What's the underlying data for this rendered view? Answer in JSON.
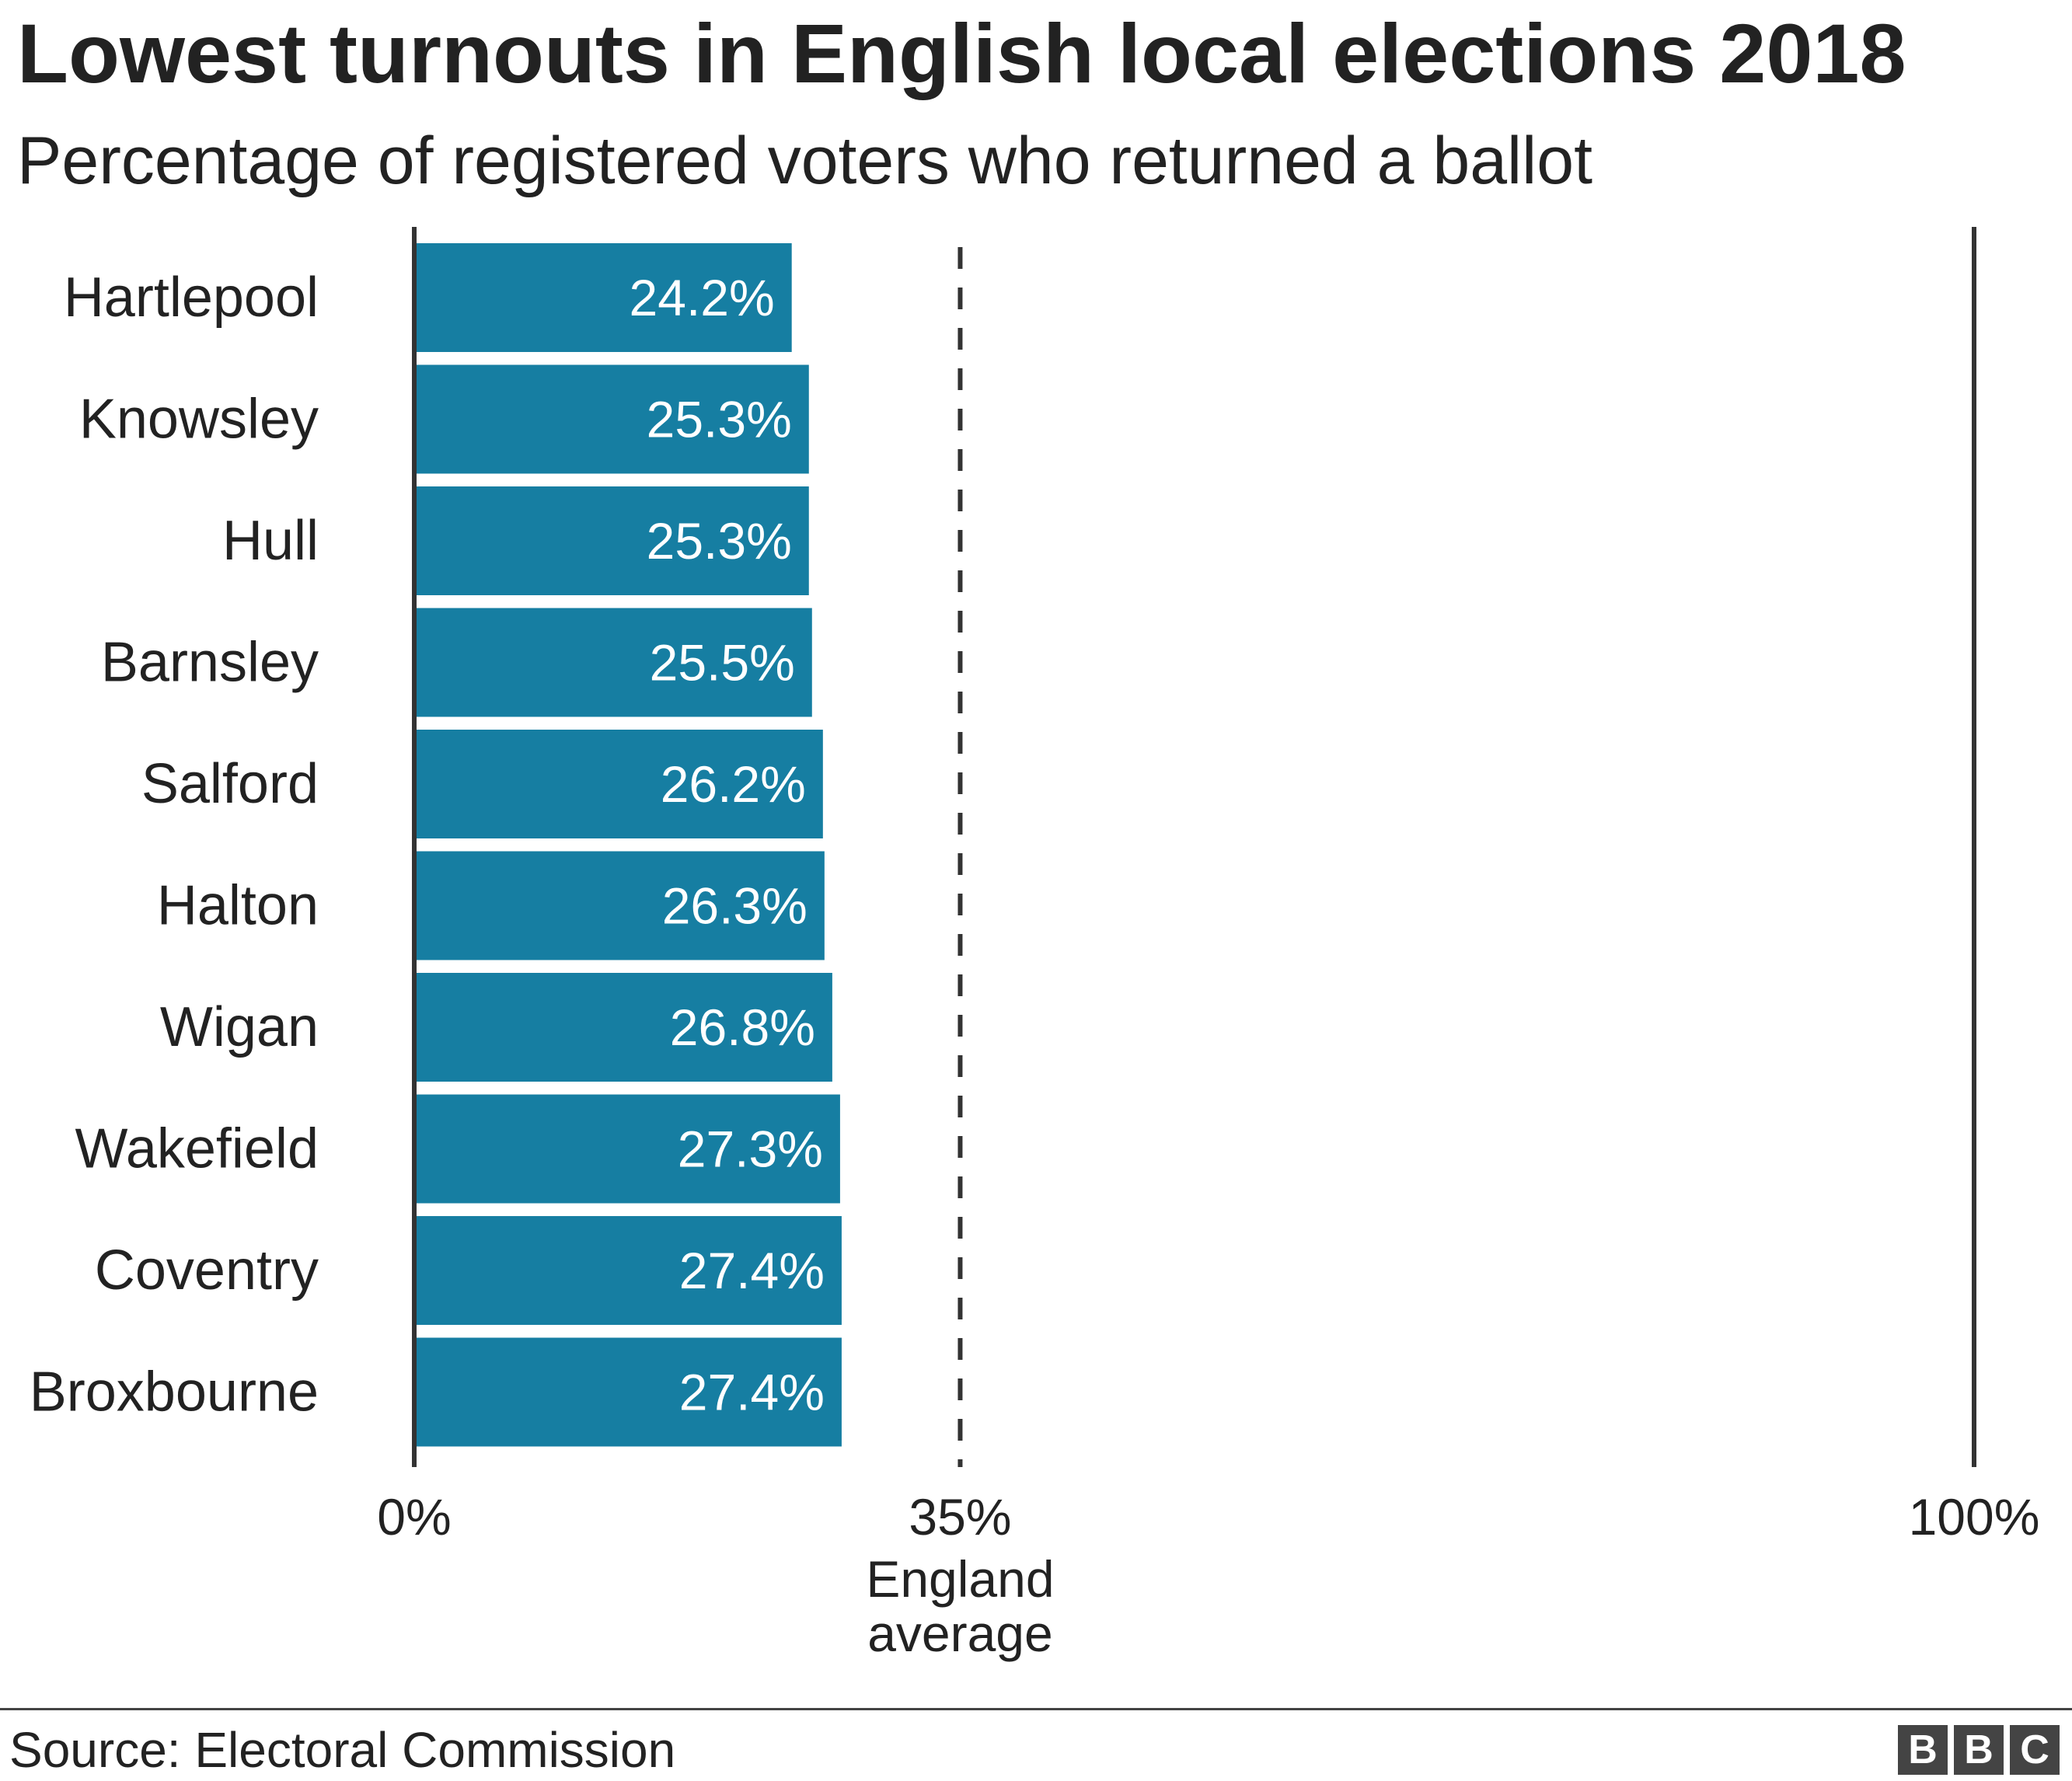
{
  "title": "Lowest turnouts in English local elections 2018",
  "subtitle": "Percentage of registered voters who returned a ballot",
  "source": "Source: Electoral Commission",
  "logo_letters": [
    "B",
    "B",
    "C"
  ],
  "colors": {
    "bar": "#167ea2",
    "axis": "#333333",
    "text": "#222222",
    "bar_label": "#ffffff"
  },
  "chart_data": {
    "type": "bar",
    "orientation": "horizontal",
    "title": "Lowest turnouts in English local elections 2018",
    "subtitle": "Percentage of registered voters who returned a ballot",
    "categories": [
      "Hartlepool",
      "Knowsley",
      "Hull",
      "Barnsley",
      "Salford",
      "Halton",
      "Wigan",
      "Wakefield",
      "Coventry",
      "Broxbourne"
    ],
    "values": [
      24.2,
      25.3,
      25.3,
      25.5,
      26.2,
      26.3,
      26.8,
      27.3,
      27.4,
      27.4
    ],
    "value_labels": [
      "24.2%",
      "25.3%",
      "25.3%",
      "25.5%",
      "26.2%",
      "26.3%",
      "26.8%",
      "27.3%",
      "27.4%",
      "27.4%"
    ],
    "xlim": [
      0,
      100
    ],
    "xticks": [
      {
        "value": 0,
        "label": "0%"
      },
      {
        "value": 35,
        "label": "35%"
      },
      {
        "value": 100,
        "label": "100%"
      }
    ],
    "reference_line": {
      "value": 35,
      "style": "dashed",
      "label_lines": [
        "England",
        "average"
      ]
    },
    "grid": false,
    "legend": "none"
  }
}
